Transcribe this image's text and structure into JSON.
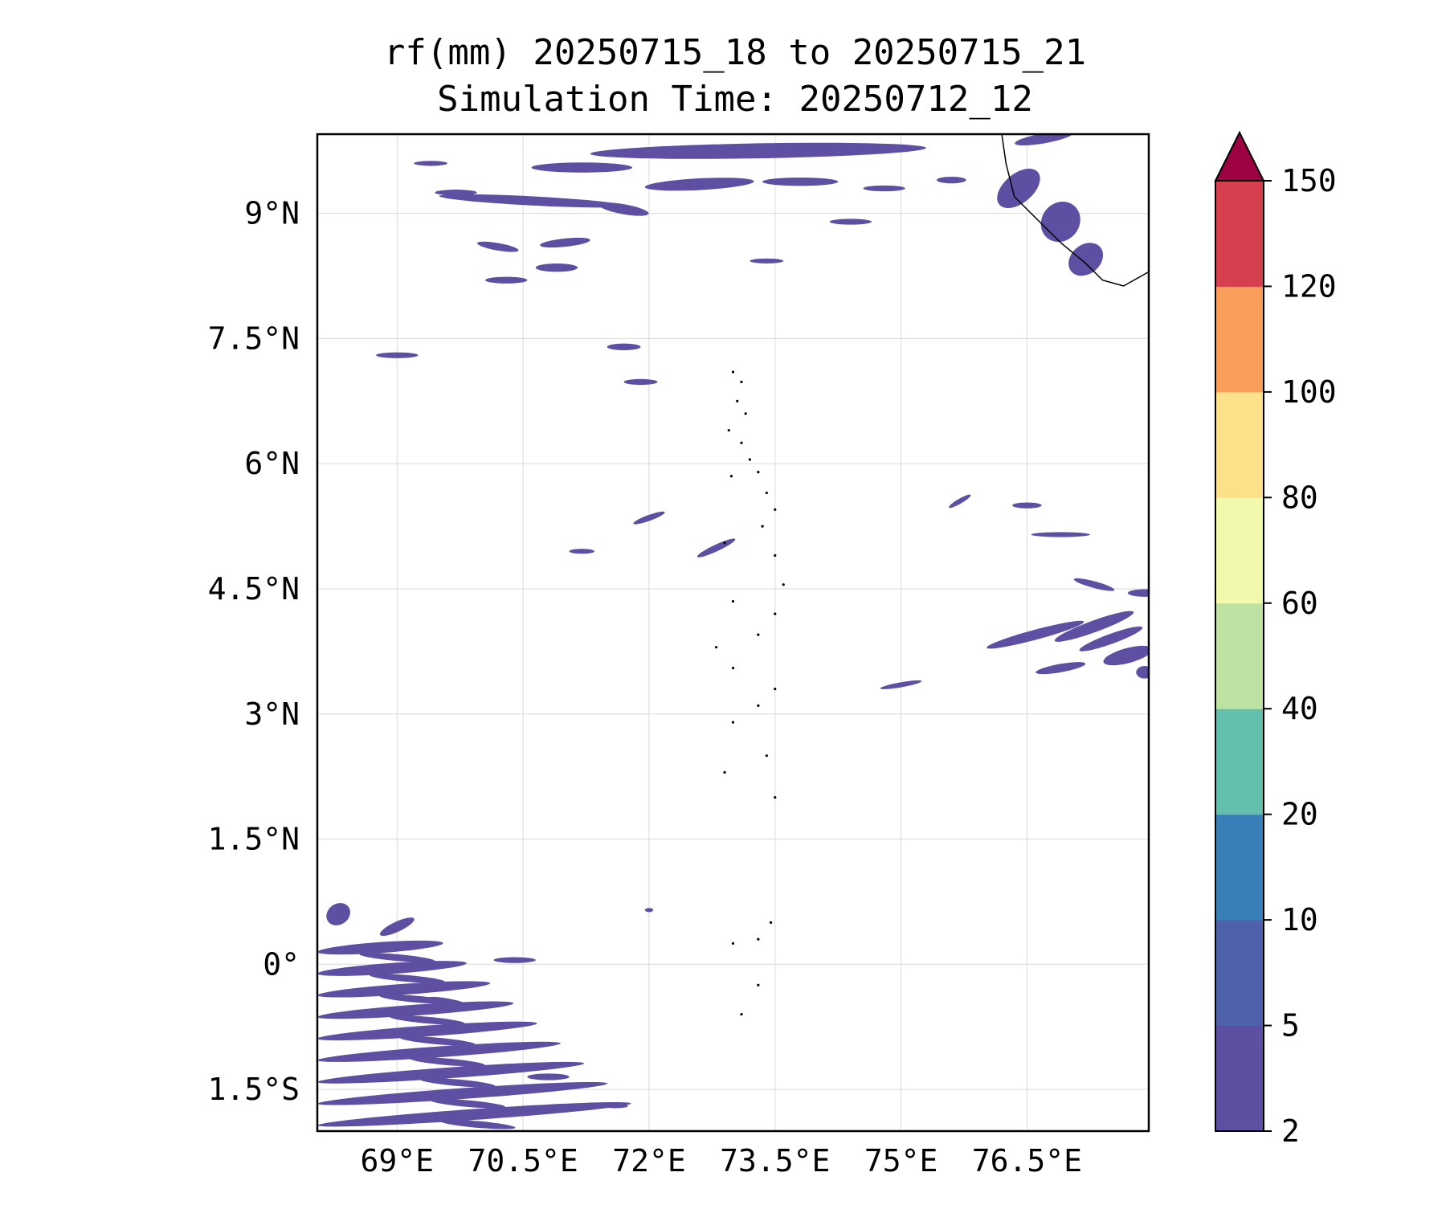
{
  "title_line1": "rf(mm) 20250715_18 to 20250715_21",
  "title_line2": "Simulation Time: 20250712_12",
  "lon_ticks": [
    {
      "value": 69.0,
      "label": "69°E"
    },
    {
      "value": 70.5,
      "label": "70.5°E"
    },
    {
      "value": 72.0,
      "label": "72°E"
    },
    {
      "value": 73.5,
      "label": "73.5°E"
    },
    {
      "value": 75.0,
      "label": "75°E"
    },
    {
      "value": 76.5,
      "label": "76.5°E"
    }
  ],
  "lat_ticks": [
    {
      "value": 9.0,
      "label": "9°N"
    },
    {
      "value": 7.5,
      "label": "7.5°N"
    },
    {
      "value": 6.0,
      "label": "6°N"
    },
    {
      "value": 4.5,
      "label": "4.5°N"
    },
    {
      "value": 3.0,
      "label": "3°N"
    },
    {
      "value": 1.5,
      "label": "1.5°N"
    },
    {
      "value": 0.0,
      "label": "0°"
    },
    {
      "value": -1.5,
      "label": "1.5°S"
    }
  ],
  "extent": {
    "lon_min": 68.05,
    "lon_max": 77.95,
    "lat_min": -2.0,
    "lat_max": 9.95
  },
  "colorbar": {
    "levels": [
      "2",
      "5",
      "10",
      "20",
      "40",
      "60",
      "80",
      "100",
      "120",
      "150"
    ],
    "colors": [
      "#5e4fa2",
      "#4f61aa",
      "#3a80b8",
      "#63bfab",
      "#bde2a1",
      "#f3f9ac",
      "#fce08a",
      "#f99d5a",
      "#d6404e"
    ],
    "extend_color": "#9e0142"
  },
  "rain_color": "#5e4fa2",
  "coast_color": "#000000"
}
